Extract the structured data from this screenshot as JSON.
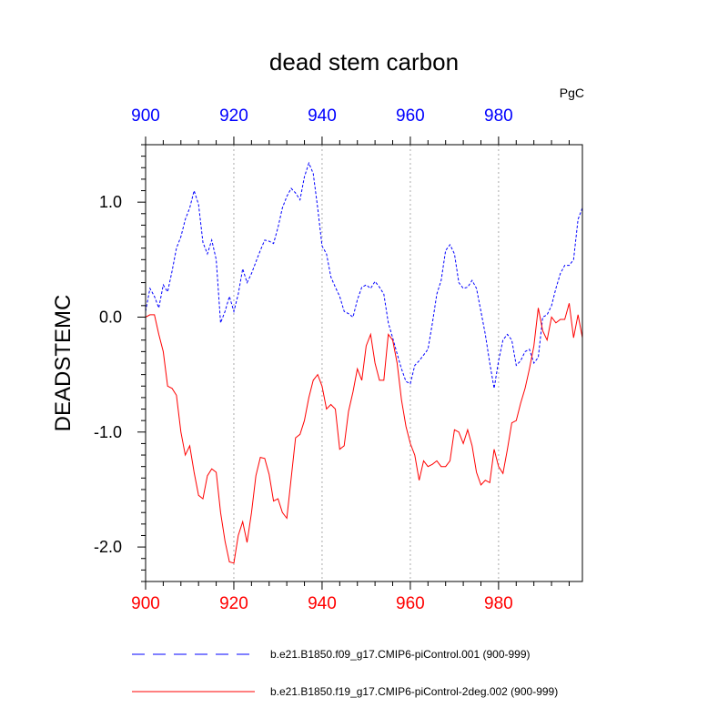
{
  "chart_data": {
    "type": "line",
    "title": "dead stem carbon",
    "units": "PgC",
    "ylabel": "DEADSTEMC",
    "xlabel": "",
    "xlim": [
      900,
      999
    ],
    "ylim": [
      -2.3,
      1.5
    ],
    "x_ticks": [
      900,
      920,
      940,
      960,
      980
    ],
    "x_tick_labels": [
      "900",
      "920",
      "940",
      "960",
      "980"
    ],
    "y_ticks": [
      1.0,
      0.0,
      -1.0,
      -2.0
    ],
    "y_tick_labels": [
      "1.0",
      "0.0",
      "-1.0",
      "-2.0"
    ],
    "top_axis_color": "#0000ff",
    "bottom_axis_color": "#ff0000",
    "vertical_gridlines_at": [
      920,
      940,
      960,
      980
    ],
    "series": [
      {
        "name": "b.e21.B1850.f09_g17.CMIP6-piControl.001 (900-999)",
        "color": "#0000ff",
        "dash": "dashed",
        "x_start": 900,
        "values": [
          0.05,
          0.25,
          0.18,
          0.08,
          0.28,
          0.22,
          0.4,
          0.6,
          0.7,
          0.85,
          0.95,
          1.1,
          0.98,
          0.65,
          0.55,
          0.67,
          0.5,
          -0.05,
          0.05,
          0.18,
          0.05,
          0.2,
          0.42,
          0.3,
          0.38,
          0.48,
          0.58,
          0.67,
          0.66,
          0.64,
          0.78,
          0.95,
          1.05,
          1.12,
          1.08,
          1.02,
          1.22,
          1.34,
          1.25,
          0.95,
          0.62,
          0.55,
          0.35,
          0.26,
          0.18,
          0.05,
          0.03,
          0.0,
          0.15,
          0.26,
          0.28,
          0.25,
          0.31,
          0.26,
          0.2,
          -0.05,
          -0.18,
          -0.32,
          -0.45,
          -0.56,
          -0.58,
          -0.42,
          -0.38,
          -0.33,
          -0.28,
          -0.05,
          0.2,
          0.32,
          0.58,
          0.63,
          0.55,
          0.3,
          0.25,
          0.26,
          0.32,
          0.25,
          0.05,
          -0.15,
          -0.4,
          -0.62,
          -0.38,
          -0.2,
          -0.15,
          -0.2,
          -0.42,
          -0.38,
          -0.3,
          -0.28,
          -0.4,
          -0.35,
          0.0,
          0.02,
          0.1,
          0.25,
          0.38,
          0.45,
          0.45,
          0.5,
          0.85,
          0.95
        ]
      },
      {
        "name": "b.e21.B1850.f19_g17.CMIP6-piControl-2deg.002 (900-999)",
        "color": "#ff0000",
        "dash": "solid",
        "x_start": 900,
        "values": [
          0.0,
          0.02,
          0.02,
          -0.15,
          -0.3,
          -0.6,
          -0.62,
          -0.68,
          -1.0,
          -1.2,
          -1.12,
          -1.35,
          -1.55,
          -1.58,
          -1.38,
          -1.32,
          -1.35,
          -1.7,
          -1.95,
          -2.13,
          -2.14,
          -1.9,
          -1.78,
          -1.96,
          -1.7,
          -1.38,
          -1.22,
          -1.23,
          -1.37,
          -1.6,
          -1.58,
          -1.7,
          -1.75,
          -1.4,
          -1.05,
          -1.02,
          -0.9,
          -0.7,
          -0.55,
          -0.5,
          -0.6,
          -0.8,
          -0.76,
          -0.8,
          -1.15,
          -1.12,
          -0.82,
          -0.65,
          -0.45,
          -0.55,
          -0.25,
          -0.15,
          -0.4,
          -0.55,
          -0.55,
          -0.15,
          -0.2,
          -0.4,
          -0.72,
          -0.95,
          -1.1,
          -1.2,
          -1.42,
          -1.25,
          -1.3,
          -1.28,
          -1.25,
          -1.3,
          -1.3,
          -1.25,
          -0.98,
          -1.0,
          -1.1,
          -0.98,
          -1.12,
          -1.35,
          -1.46,
          -1.42,
          -1.44,
          -1.15,
          -1.3,
          -1.36,
          -1.15,
          -0.92,
          -0.9,
          -0.75,
          -0.62,
          -0.45,
          -0.25,
          0.08,
          -0.12,
          -0.2,
          0.0,
          -0.05,
          -0.02,
          -0.02,
          0.12,
          -0.18,
          0.02,
          -0.18
        ]
      }
    ],
    "legend": {
      "placement": "bottom",
      "entries": [
        {
          "label": "b.e21.B1850.f09_g17.CMIP6-piControl.001 (900-999)",
          "color": "#0000ff",
          "dash": "dashed"
        },
        {
          "label": "b.e21.B1850.f19_g17.CMIP6-piControl-2deg.002 (900-999)",
          "color": "#ff0000",
          "dash": "solid"
        }
      ]
    }
  }
}
